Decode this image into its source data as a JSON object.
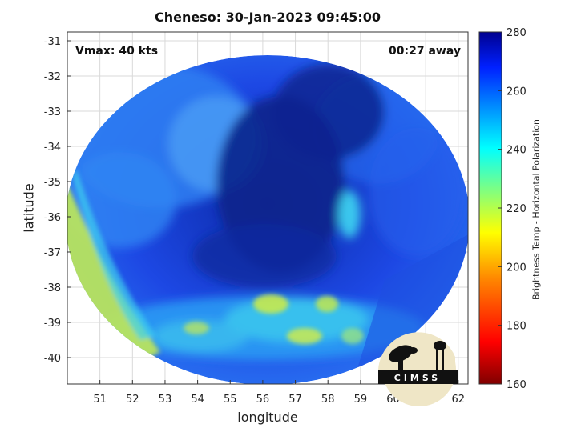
{
  "title": "Cheneso: 30-Jan-2023 09:45:00",
  "vmax_label": "Vmax: 40 kts",
  "time_label": "00:27 away",
  "xlabel": "longitude",
  "ylabel": "latitude",
  "colorbar_label": "Brightness Temp - Horizontal Polarization",
  "logo_text": "CIMSS",
  "chart_data": {
    "type": "heatmap",
    "title": "Cheneso: 30-Jan-2023 09:45:00",
    "xlabel": "longitude",
    "ylabel": "latitude",
    "xlim": [
      50.0,
      62.3
    ],
    "ylim": [
      -40.75,
      -30.75
    ],
    "xticks": [
      51,
      52,
      53,
      54,
      55,
      56,
      57,
      58,
      59,
      60,
      61,
      62
    ],
    "yticks": [
      -31,
      -32,
      -33,
      -34,
      -35,
      -36,
      -37,
      -38,
      -39,
      -40
    ],
    "grid": true,
    "swath_center": [
      56.2,
      -35.7
    ],
    "colorbar": {
      "label": "Brightness Temp - Horizontal Polarization",
      "range": [
        160,
        280
      ],
      "ticks": [
        160,
        180,
        200,
        220,
        240,
        260,
        280
      ],
      "colormap": "jet"
    },
    "annotations": [
      "Vmax: 40 kts",
      "00:27 away"
    ]
  },
  "colors": {
    "background": "#ffffff",
    "grid": "#d0d0d0",
    "axis": "#333333",
    "deep_blue": "#08248f",
    "mid_blue": "#1d46e6",
    "light_blue": "#2f8af6",
    "cyan": "#30d2f0",
    "yellow_green": "#b9e65a"
  }
}
